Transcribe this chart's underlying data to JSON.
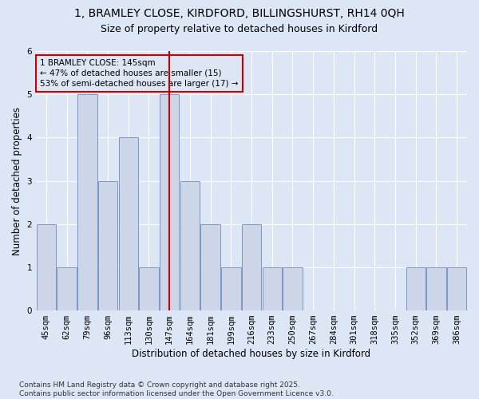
{
  "title": "1, BRAMLEY CLOSE, KIRDFORD, BILLINGSHURST, RH14 0QH",
  "subtitle": "Size of property relative to detached houses in Kirdford",
  "xlabel": "Distribution of detached houses by size in Kirdford",
  "ylabel": "Number of detached properties",
  "footer": "Contains HM Land Registry data © Crown copyright and database right 2025.\nContains public sector information licensed under the Open Government Licence v3.0.",
  "categories": [
    "45sqm",
    "62sqm",
    "79sqm",
    "96sqm",
    "113sqm",
    "130sqm",
    "147sqm",
    "164sqm",
    "181sqm",
    "199sqm",
    "216sqm",
    "233sqm",
    "250sqm",
    "267sqm",
    "284sqm",
    "301sqm",
    "318sqm",
    "335sqm",
    "352sqm",
    "369sqm",
    "386sqm"
  ],
  "values": [
    2,
    1,
    5,
    3,
    4,
    1,
    5,
    3,
    2,
    1,
    2,
    1,
    1,
    0,
    0,
    0,
    0,
    0,
    1,
    1,
    1
  ],
  "bar_color": "#ccd6e8",
  "bar_edge_color": "#6a8bbf",
  "vline_index": 6,
  "vline_color": "#cc0000",
  "annotation_text": "1 BRAMLEY CLOSE: 145sqm\n← 47% of detached houses are smaller (15)\n53% of semi-detached houses are larger (17) →",
  "annotation_box_edge": "#cc0000",
  "background_color": "#dce6f5",
  "plot_bg_color": "#dce6f5",
  "ylim": [
    0,
    6
  ],
  "yticks": [
    0,
    1,
    2,
    3,
    4,
    5,
    6
  ],
  "title_fontsize": 10,
  "subtitle_fontsize": 9,
  "xlabel_fontsize": 8.5,
  "ylabel_fontsize": 8.5,
  "tick_fontsize": 7.5,
  "footer_fontsize": 6.5
}
